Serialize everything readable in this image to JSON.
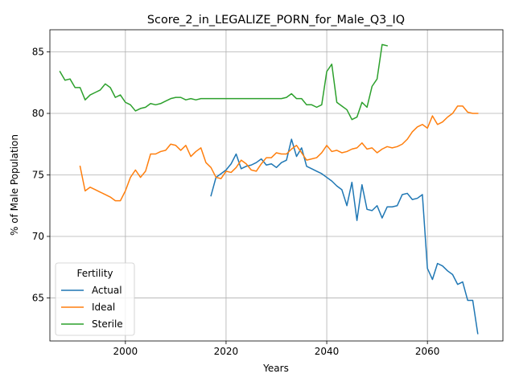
{
  "chart_data": {
    "type": "line",
    "title": "Score_2_in_LEGALIZE_PORN_for_Male_Q3_IQ",
    "xlabel": "Years",
    "ylabel": "% of Male Population",
    "xlim": [
      1985,
      2075
    ],
    "ylim": [
      61.5,
      86.8
    ],
    "xticks": [
      2000,
      2020,
      2040,
      2060
    ],
    "yticks": [
      65,
      70,
      75,
      80,
      85
    ],
    "grid": true,
    "legend": {
      "title": "Fertility",
      "placement": "lower-left"
    },
    "series": [
      {
        "name": "Actual",
        "color": "#1f77b4",
        "x": [
          2017,
          2018,
          2019,
          2020,
          2021,
          2022,
          2023,
          2024,
          2025,
          2026,
          2027,
          2028,
          2029,
          2030,
          2031,
          2032,
          2033,
          2034,
          2035,
          2036,
          2037,
          2038,
          2039,
          2040,
          2041,
          2042,
          2043,
          2044,
          2045,
          2046,
          2047,
          2048,
          2049,
          2050,
          2051,
          2052,
          2053,
          2054,
          2055,
          2056,
          2057,
          2058,
          2059,
          2060,
          2061,
          2062,
          2063,
          2064,
          2065,
          2066,
          2067,
          2068,
          2069,
          2070
        ],
        "y": [
          73.3,
          74.8,
          75.1,
          75.4,
          75.9,
          76.7,
          75.5,
          75.7,
          75.8,
          76.0,
          76.3,
          75.8,
          75.9,
          75.6,
          76.0,
          76.2,
          77.9,
          76.5,
          77.2,
          75.7,
          75.5,
          75.3,
          75.1,
          74.8,
          74.5,
          74.1,
          73.8,
          72.5,
          74.4,
          71.3,
          74.2,
          72.2,
          72.1,
          72.5,
          71.5,
          72.4,
          72.4,
          72.5,
          73.4,
          73.5,
          73.0,
          73.1,
          73.4,
          67.4,
          66.5,
          67.8,
          67.6,
          67.2,
          66.9,
          66.1,
          66.3,
          64.8,
          64.8,
          62.1
        ]
      },
      {
        "name": "Ideal",
        "color": "#ff7f0e",
        "x": [
          1991,
          1992,
          1993,
          1994,
          1995,
          1996,
          1997,
          1998,
          1999,
          2000,
          2001,
          2002,
          2003,
          2004,
          2005,
          2006,
          2007,
          2008,
          2009,
          2010,
          2011,
          2012,
          2013,
          2014,
          2015,
          2016,
          2017,
          2018,
          2019,
          2020,
          2021,
          2022,
          2023,
          2024,
          2025,
          2026,
          2027,
          2028,
          2029,
          2030,
          2031,
          2032,
          2033,
          2034,
          2035,
          2036,
          2037,
          2038,
          2039,
          2040,
          2041,
          2042,
          2043,
          2044,
          2045,
          2046,
          2047,
          2048,
          2049,
          2050,
          2051,
          2052,
          2053,
          2054,
          2055,
          2056,
          2057,
          2058,
          2059,
          2060,
          2061,
          2062,
          2063,
          2064,
          2065,
          2066,
          2067,
          2068,
          2069,
          2070
        ],
        "y": [
          75.7,
          73.7,
          74.0,
          73.8,
          73.6,
          73.4,
          73.2,
          72.9,
          72.9,
          73.7,
          74.8,
          75.4,
          74.8,
          75.3,
          76.7,
          76.7,
          76.9,
          77.0,
          77.5,
          77.4,
          77.0,
          77.4,
          76.5,
          76.9,
          77.2,
          76.0,
          75.6,
          74.8,
          74.7,
          75.3,
          75.2,
          75.6,
          76.2,
          75.9,
          75.4,
          75.3,
          75.9,
          76.4,
          76.4,
          76.8,
          76.7,
          76.7,
          77.1,
          77.4,
          76.8,
          76.2,
          76.3,
          76.4,
          76.8,
          77.4,
          76.9,
          77.0,
          76.8,
          76.9,
          77.1,
          77.2,
          77.6,
          77.1,
          77.2,
          76.8,
          77.1,
          77.3,
          77.2,
          77.3,
          77.5,
          77.9,
          78.5,
          78.9,
          79.1,
          78.8,
          79.8,
          79.1,
          79.3,
          79.7,
          80.0,
          80.6,
          80.6,
          80.1,
          80.0,
          80.0
        ]
      },
      {
        "name": "Sterile",
        "color": "#2ca02c",
        "x": [
          1987,
          1988,
          1989,
          1990,
          1991,
          1992,
          1993,
          1994,
          1995,
          1996,
          1997,
          1998,
          1999,
          2000,
          2001,
          2002,
          2003,
          2004,
          2005,
          2006,
          2007,
          2008,
          2009,
          2010,
          2011,
          2012,
          2013,
          2014,
          2015,
          2016,
          2017,
          2018,
          2019,
          2020,
          2021,
          2022,
          2023,
          2024,
          2025,
          2026,
          2027,
          2028,
          2029,
          2030,
          2031,
          2032,
          2033,
          2034,
          2035,
          2036,
          2037,
          2038,
          2039,
          2040,
          2041,
          2042,
          2043,
          2044,
          2045,
          2046,
          2047,
          2048,
          2049,
          2050,
          2051,
          2052
        ],
        "y": [
          83.4,
          82.7,
          82.8,
          82.1,
          82.1,
          81.1,
          81.5,
          81.7,
          81.9,
          82.4,
          82.1,
          81.3,
          81.5,
          80.9,
          80.7,
          80.2,
          80.4,
          80.5,
          80.8,
          80.7,
          80.8,
          81.0,
          81.2,
          81.3,
          81.3,
          81.1,
          81.2,
          81.1,
          81.2,
          81.2,
          81.2,
          81.2,
          81.2,
          81.2,
          81.2,
          81.2,
          81.2,
          81.2,
          81.2,
          81.2,
          81.2,
          81.2,
          81.2,
          81.2,
          81.2,
          81.3,
          81.6,
          81.2,
          81.2,
          80.7,
          80.7,
          80.5,
          80.7,
          83.4,
          84.0,
          80.9,
          80.6,
          80.3,
          79.5,
          79.7,
          80.9,
          80.5,
          82.2,
          82.8,
          85.6,
          85.5
        ]
      }
    ]
  }
}
